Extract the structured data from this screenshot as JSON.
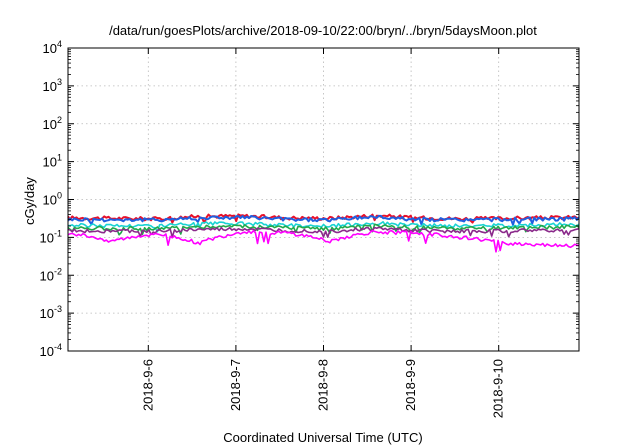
{
  "chart_data": {
    "type": "line",
    "title": "/data/run/goesPlots/archive/2018-09-10/22:00/bryn/../bryn/5daysMoon.plot",
    "xlabel": "Coordinated Universal Time (UTC)",
    "ylabel": "cGy/day",
    "yscale": "log",
    "ylim": [
      0.0001,
      10000
    ],
    "y_ticks": [
      {
        "value": 0.0001,
        "base": "10",
        "exp": "-4"
      },
      {
        "value": 0.001,
        "base": "10",
        "exp": "-3"
      },
      {
        "value": 0.01,
        "base": "10",
        "exp": "-2"
      },
      {
        "value": 0.1,
        "base": "10",
        "exp": "-1"
      },
      {
        "value": 1,
        "base": "10",
        "exp": "0"
      },
      {
        "value": 10,
        "base": "10",
        "exp": "1"
      },
      {
        "value": 100,
        "base": "10",
        "exp": "2"
      },
      {
        "value": 1000,
        "base": "10",
        "exp": "3"
      },
      {
        "value": 10000,
        "base": "10",
        "exp": "4"
      }
    ],
    "xlim": [
      "2018-09-05T02:00",
      "2018-09-10T22:00"
    ],
    "x_ticks": [
      "2018-9-6",
      "2018-9-7",
      "2018-9-8",
      "2018-9-9",
      "2018-9-10"
    ],
    "grid": true,
    "series": [
      {
        "color": "#e8102a",
        "level": 0.33,
        "points": [
          [
            "2018-09-05T02:00",
            0.33
          ],
          [
            "2018-09-06T02:00",
            0.31
          ],
          [
            "2018-09-06T14:00",
            0.36
          ],
          [
            "2018-09-07T02:00",
            0.37
          ],
          [
            "2018-09-07T14:00",
            0.33
          ],
          [
            "2018-09-08T02:00",
            0.32
          ],
          [
            "2018-09-08T14:00",
            0.38
          ],
          [
            "2018-09-09T02:00",
            0.33
          ],
          [
            "2018-09-09T14:00",
            0.31
          ],
          [
            "2018-09-10T02:00",
            0.32
          ],
          [
            "2018-09-10T22:00",
            0.34
          ]
        ]
      },
      {
        "color": "#1f5fe0",
        "level": 0.3,
        "points": [
          [
            "2018-09-05T02:00",
            0.3
          ],
          [
            "2018-09-06T02:00",
            0.29
          ],
          [
            "2018-09-06T14:00",
            0.33
          ],
          [
            "2018-09-07T02:00",
            0.34
          ],
          [
            "2018-09-07T14:00",
            0.3
          ],
          [
            "2018-09-08T02:00",
            0.29
          ],
          [
            "2018-09-08T14:00",
            0.35
          ],
          [
            "2018-09-09T02:00",
            0.3
          ],
          [
            "2018-09-09T14:00",
            0.29
          ],
          [
            "2018-09-10T02:00",
            0.3
          ],
          [
            "2018-09-10T22:00",
            0.31
          ]
        ]
      },
      {
        "color": "#19d3d3",
        "level": 0.21,
        "points": [
          [
            "2018-09-05T02:00",
            0.21
          ],
          [
            "2018-09-06T02:00",
            0.2
          ],
          [
            "2018-09-06T14:00",
            0.23
          ],
          [
            "2018-09-07T02:00",
            0.23
          ],
          [
            "2018-09-07T14:00",
            0.21
          ],
          [
            "2018-09-08T02:00",
            0.2
          ],
          [
            "2018-09-08T14:00",
            0.24
          ],
          [
            "2018-09-09T02:00",
            0.21
          ],
          [
            "2018-09-09T14:00",
            0.2
          ],
          [
            "2018-09-10T02:00",
            0.21
          ],
          [
            "2018-09-10T22:00",
            0.22
          ]
        ]
      },
      {
        "color": "#22a84a",
        "level": 0.18,
        "points": [
          [
            "2018-09-05T02:00",
            0.18
          ],
          [
            "2018-09-06T02:00",
            0.17
          ],
          [
            "2018-09-06T14:00",
            0.19
          ],
          [
            "2018-09-07T02:00",
            0.2
          ],
          [
            "2018-09-07T14:00",
            0.18
          ],
          [
            "2018-09-08T02:00",
            0.17
          ],
          [
            "2018-09-08T14:00",
            0.2
          ],
          [
            "2018-09-09T02:00",
            0.18
          ],
          [
            "2018-09-09T14:00",
            0.17
          ],
          [
            "2018-09-10T02:00",
            0.18
          ],
          [
            "2018-09-10T22:00",
            0.19
          ]
        ]
      },
      {
        "color": "#8a2a8a",
        "level": 0.15,
        "points": [
          [
            "2018-09-05T02:00",
            0.15
          ],
          [
            "2018-09-06T02:00",
            0.145
          ],
          [
            "2018-09-06T14:00",
            0.16
          ],
          [
            "2018-09-07T02:00",
            0.165
          ],
          [
            "2018-09-07T14:00",
            0.15
          ],
          [
            "2018-09-08T02:00",
            0.145
          ],
          [
            "2018-09-08T14:00",
            0.17
          ],
          [
            "2018-09-09T02:00",
            0.15
          ],
          [
            "2018-09-09T14:00",
            0.145
          ],
          [
            "2018-09-10T02:00",
            0.15
          ],
          [
            "2018-09-10T22:00",
            0.155
          ]
        ]
      },
      {
        "color": "#ff00ff",
        "level": 0.13,
        "points": [
          [
            "2018-09-05T02:00",
            0.13
          ],
          [
            "2018-09-05T14:00",
            0.08
          ],
          [
            "2018-09-06T02:00",
            0.125
          ],
          [
            "2018-09-06T14:00",
            0.07
          ],
          [
            "2018-09-07T02:00",
            0.14
          ],
          [
            "2018-09-07T14:00",
            0.13
          ],
          [
            "2018-09-08T02:00",
            0.08
          ],
          [
            "2018-09-08T14:00",
            0.14
          ],
          [
            "2018-09-09T02:00",
            0.13
          ],
          [
            "2018-09-10T02:00",
            0.07
          ],
          [
            "2018-09-10T22:00",
            0.06
          ]
        ]
      }
    ]
  }
}
